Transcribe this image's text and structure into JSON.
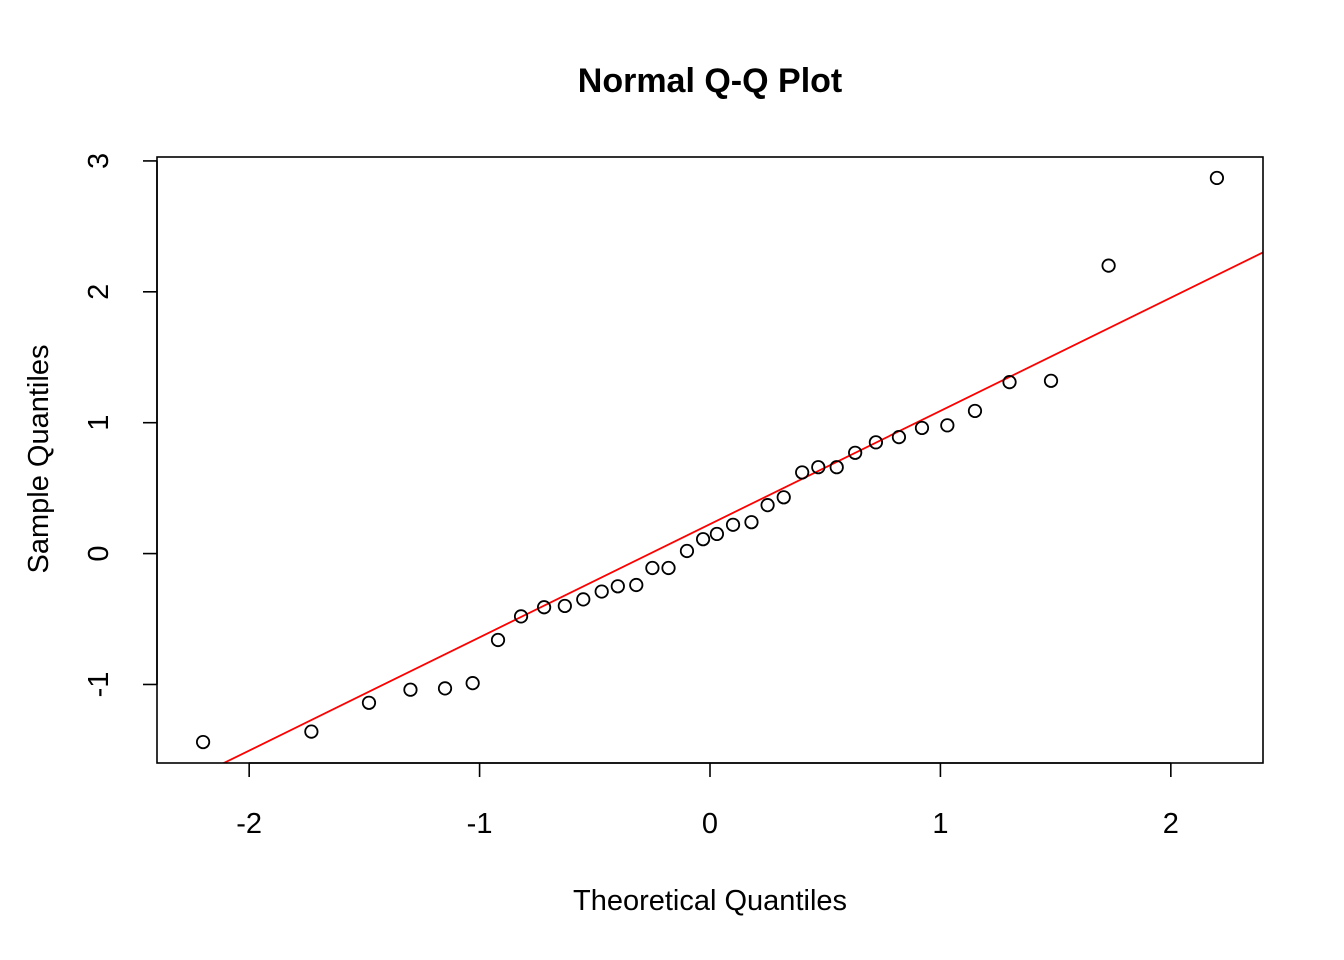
{
  "chart_data": {
    "type": "scatter",
    "title": "Normal Q-Q Plot",
    "xlabel": "Theoretical Quantiles",
    "ylabel": "Sample Quantiles",
    "xlim": [
      -2.4,
      2.4
    ],
    "ylim": [
      -1.6,
      3.03
    ],
    "x_ticks": [
      -2,
      -1,
      0,
      1,
      2
    ],
    "x_tick_labels": [
      "-2",
      "-1",
      "0",
      "1",
      "2"
    ],
    "y_ticks": [
      -1,
      0,
      1,
      2,
      3
    ],
    "y_tick_labels": [
      "-1",
      "0",
      "1",
      "2",
      "3"
    ],
    "grid": false,
    "legend": "none",
    "series": [
      {
        "marker": "open-circle",
        "color": "#000000",
        "points": [
          {
            "x": -2.2,
            "y": -1.44
          },
          {
            "x": -1.73,
            "y": -1.36
          },
          {
            "x": -1.48,
            "y": -1.14
          },
          {
            "x": -1.3,
            "y": -1.04
          },
          {
            "x": -1.15,
            "y": -1.03
          },
          {
            "x": -1.03,
            "y": -0.99
          },
          {
            "x": -0.92,
            "y": -0.66
          },
          {
            "x": -0.82,
            "y": -0.48
          },
          {
            "x": -0.72,
            "y": -0.41
          },
          {
            "x": -0.63,
            "y": -0.4
          },
          {
            "x": -0.55,
            "y": -0.35
          },
          {
            "x": -0.47,
            "y": -0.29
          },
          {
            "x": -0.4,
            "y": -0.25
          },
          {
            "x": -0.32,
            "y": -0.24
          },
          {
            "x": -0.25,
            "y": -0.11
          },
          {
            "x": -0.18,
            "y": -0.11
          },
          {
            "x": -0.1,
            "y": 0.02
          },
          {
            "x": -0.03,
            "y": 0.11
          },
          {
            "x": 0.03,
            "y": 0.15
          },
          {
            "x": 0.1,
            "y": 0.22
          },
          {
            "x": 0.18,
            "y": 0.24
          },
          {
            "x": 0.25,
            "y": 0.37
          },
          {
            "x": 0.32,
            "y": 0.43
          },
          {
            "x": 0.4,
            "y": 0.62
          },
          {
            "x": 0.47,
            "y": 0.66
          },
          {
            "x": 0.55,
            "y": 0.66
          },
          {
            "x": 0.63,
            "y": 0.77
          },
          {
            "x": 0.72,
            "y": 0.85
          },
          {
            "x": 0.82,
            "y": 0.89
          },
          {
            "x": 0.92,
            "y": 0.96
          },
          {
            "x": 1.03,
            "y": 0.98
          },
          {
            "x": 1.15,
            "y": 1.09
          },
          {
            "x": 1.3,
            "y": 1.31
          },
          {
            "x": 1.48,
            "y": 1.32
          },
          {
            "x": 1.73,
            "y": 2.2
          },
          {
            "x": 2.2,
            "y": 2.87
          }
        ]
      }
    ],
    "reference_line": {
      "color": "#ff0000",
      "intercept": 0.225,
      "slope": 0.865
    }
  }
}
